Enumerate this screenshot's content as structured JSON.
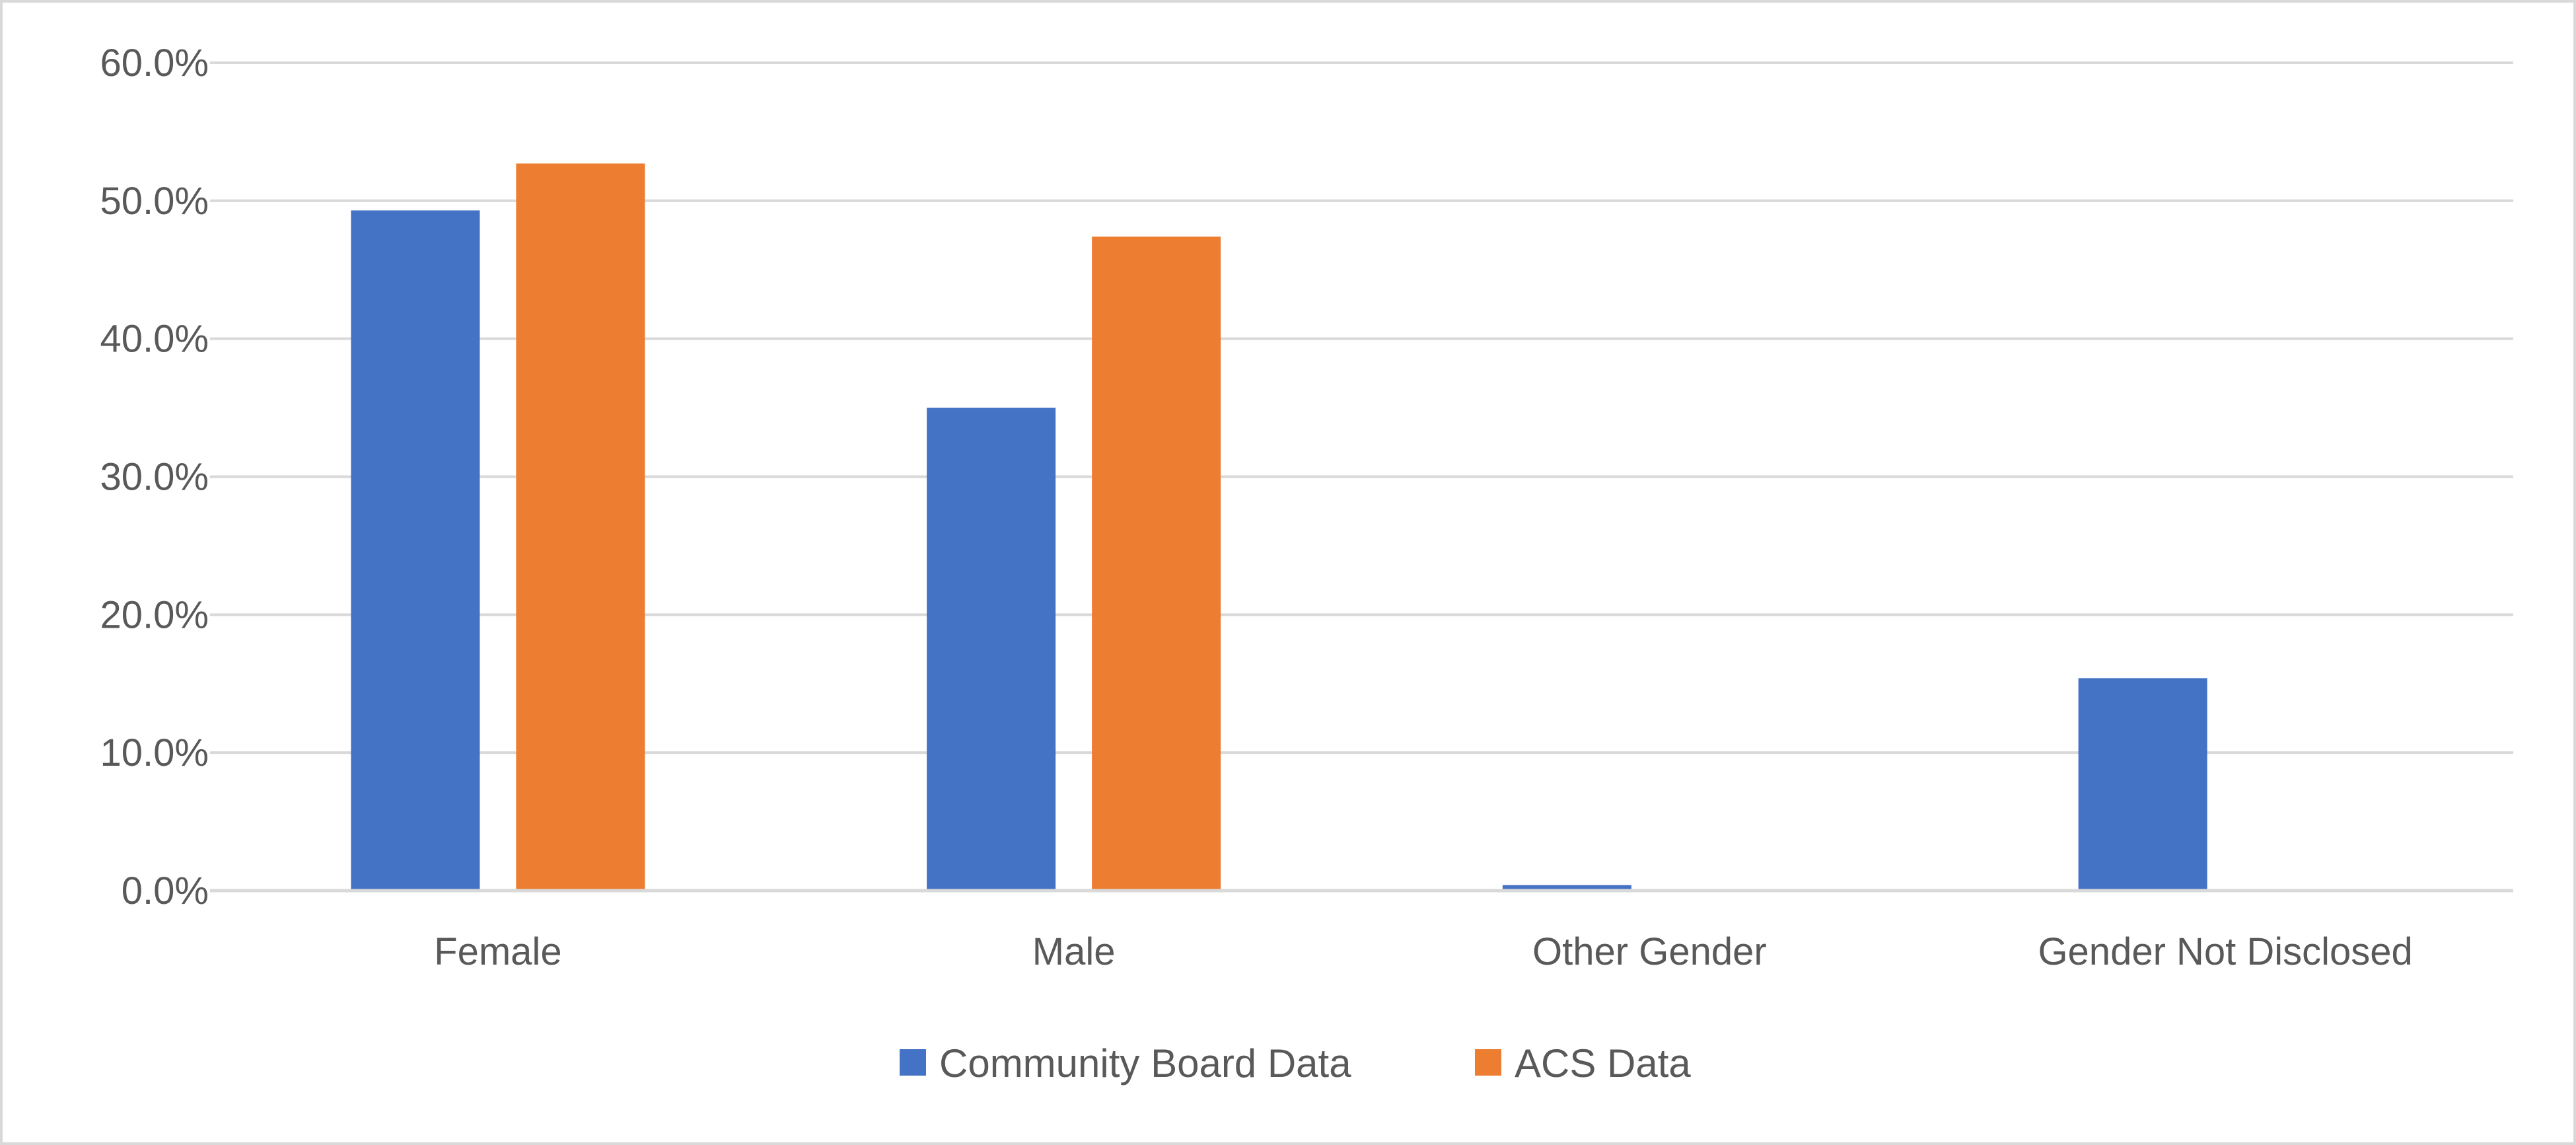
{
  "chart_data": {
    "type": "bar",
    "categories": [
      "Female",
      "Male",
      "Other Gender",
      "Gender Not Disclosed"
    ],
    "series": [
      {
        "name": "Community Board Data",
        "color": "#4472C4",
        "values": [
          49.3,
          35.0,
          0.4,
          15.4
        ]
      },
      {
        "name": "ACS Data",
        "color": "#ED7D31",
        "values": [
          52.7,
          47.4,
          0.0,
          0.0
        ]
      }
    ],
    "yticks": [
      "0.0%",
      "10.0%",
      "20.0%",
      "30.0%",
      "40.0%",
      "50.0%",
      "60.0%"
    ],
    "ylim": [
      0,
      60
    ],
    "grid": true,
    "legend": "bottom",
    "title": "",
    "xlabel": "",
    "ylabel": ""
  }
}
